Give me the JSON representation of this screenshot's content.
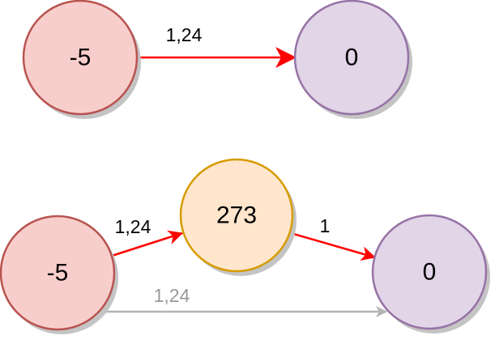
{
  "colors": {
    "red_node_fill": "#f8cecc",
    "red_node_stroke": "#b85450",
    "purple_node_fill": "#e1d5e7",
    "purple_node_stroke": "#9673a6",
    "orange_node_fill": "#ffe6cc",
    "orange_node_stroke": "#d79b00",
    "active_edge": "#ff0000",
    "inactive_edge": "#b3b3b3",
    "active_label": "#000000",
    "inactive_label": "#999999",
    "shadow": "#c4c4c4"
  },
  "top": {
    "source": {
      "label": "-5"
    },
    "target": {
      "label": "0"
    },
    "edge": {
      "label": "1,24"
    }
  },
  "bottom": {
    "source": {
      "label": "-5"
    },
    "middle": {
      "label": "273"
    },
    "target": {
      "label": "0"
    },
    "edge_source_middle": {
      "label": "1,24"
    },
    "edge_middle_target": {
      "label": "1"
    },
    "edge_source_target": {
      "label": "1,24"
    }
  }
}
